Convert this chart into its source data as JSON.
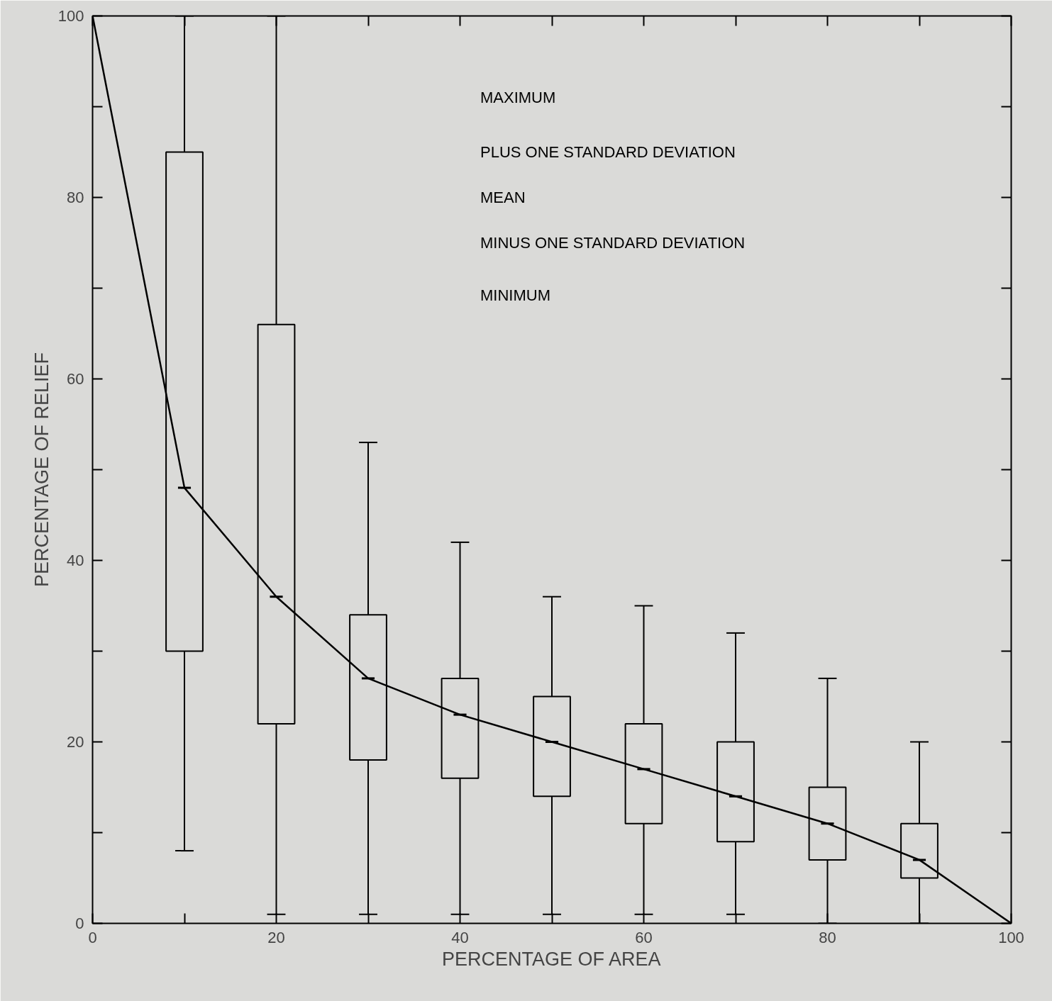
{
  "chart_data": {
    "type": "box",
    "xlabel": "PERCENTAGE OF AREA",
    "ylabel": "PERCENTAGE OF RELIEF",
    "xlim": [
      0,
      100
    ],
    "ylim": [
      0,
      100
    ],
    "xticks": [
      0,
      {
        "value": 10,
        "label": null
      },
      20,
      {
        "value": 30,
        "label": null
      },
      40,
      {
        "value": 50,
        "label": null
      },
      60,
      {
        "value": 70,
        "label": null
      },
      80,
      {
        "value": 90,
        "label": null
      },
      100
    ],
    "yticks": [
      0,
      {
        "value": 10,
        "label": null
      },
      20,
      {
        "value": 30,
        "label": null
      },
      40,
      {
        "value": 50,
        "label": null
      },
      60,
      {
        "value": 70,
        "label": null
      },
      80,
      {
        "value": 90,
        "label": null
      },
      100
    ],
    "grid": false,
    "series": [
      {
        "color": "#000000",
        "x": [
          10,
          20,
          30,
          40,
          50,
          60,
          70,
          80,
          90
        ],
        "boxes": [
          {
            "low": 8,
            "q1": 30,
            "median": 48,
            "q3": 85,
            "high": 100
          },
          {
            "low": 1,
            "q1": 22,
            "median": 36,
            "q3": 66,
            "high": 100
          },
          {
            "low": 1,
            "q1": 18,
            "median": 27,
            "q3": 34,
            "high": 53
          },
          {
            "low": 1,
            "q1": 16,
            "median": 23,
            "q3": 27,
            "high": 42
          },
          {
            "low": 1,
            "q1": 14,
            "median": 20,
            "q3": 25,
            "high": 36
          },
          {
            "low": 1,
            "q1": 11,
            "median": 17,
            "q3": 22,
            "high": 35
          },
          {
            "low": 1,
            "q1": 9,
            "median": 14,
            "q3": 20,
            "high": 32
          },
          {
            "low": 0,
            "q1": 7,
            "median": 11,
            "q3": 15,
            "high": 27
          },
          {
            "low": 0,
            "q1": 5,
            "median": 7,
            "q3": 11,
            "high": 20
          }
        ]
      },
      {
        "type": "line",
        "color": "#000000",
        "x": [
          0,
          10,
          20,
          30,
          40,
          50,
          60,
          70,
          80,
          90,
          100
        ],
        "values": [
          100,
          48,
          36,
          27,
          23,
          20,
          17,
          14,
          11,
          7,
          0
        ]
      }
    ],
    "annotations": [
      "MAXIMUM",
      "PLUS ONE STANDARD DEVIATION",
      "MEAN",
      "MINUS ONE STANDARD DEVIATION",
      "MINIMUM"
    ]
  }
}
